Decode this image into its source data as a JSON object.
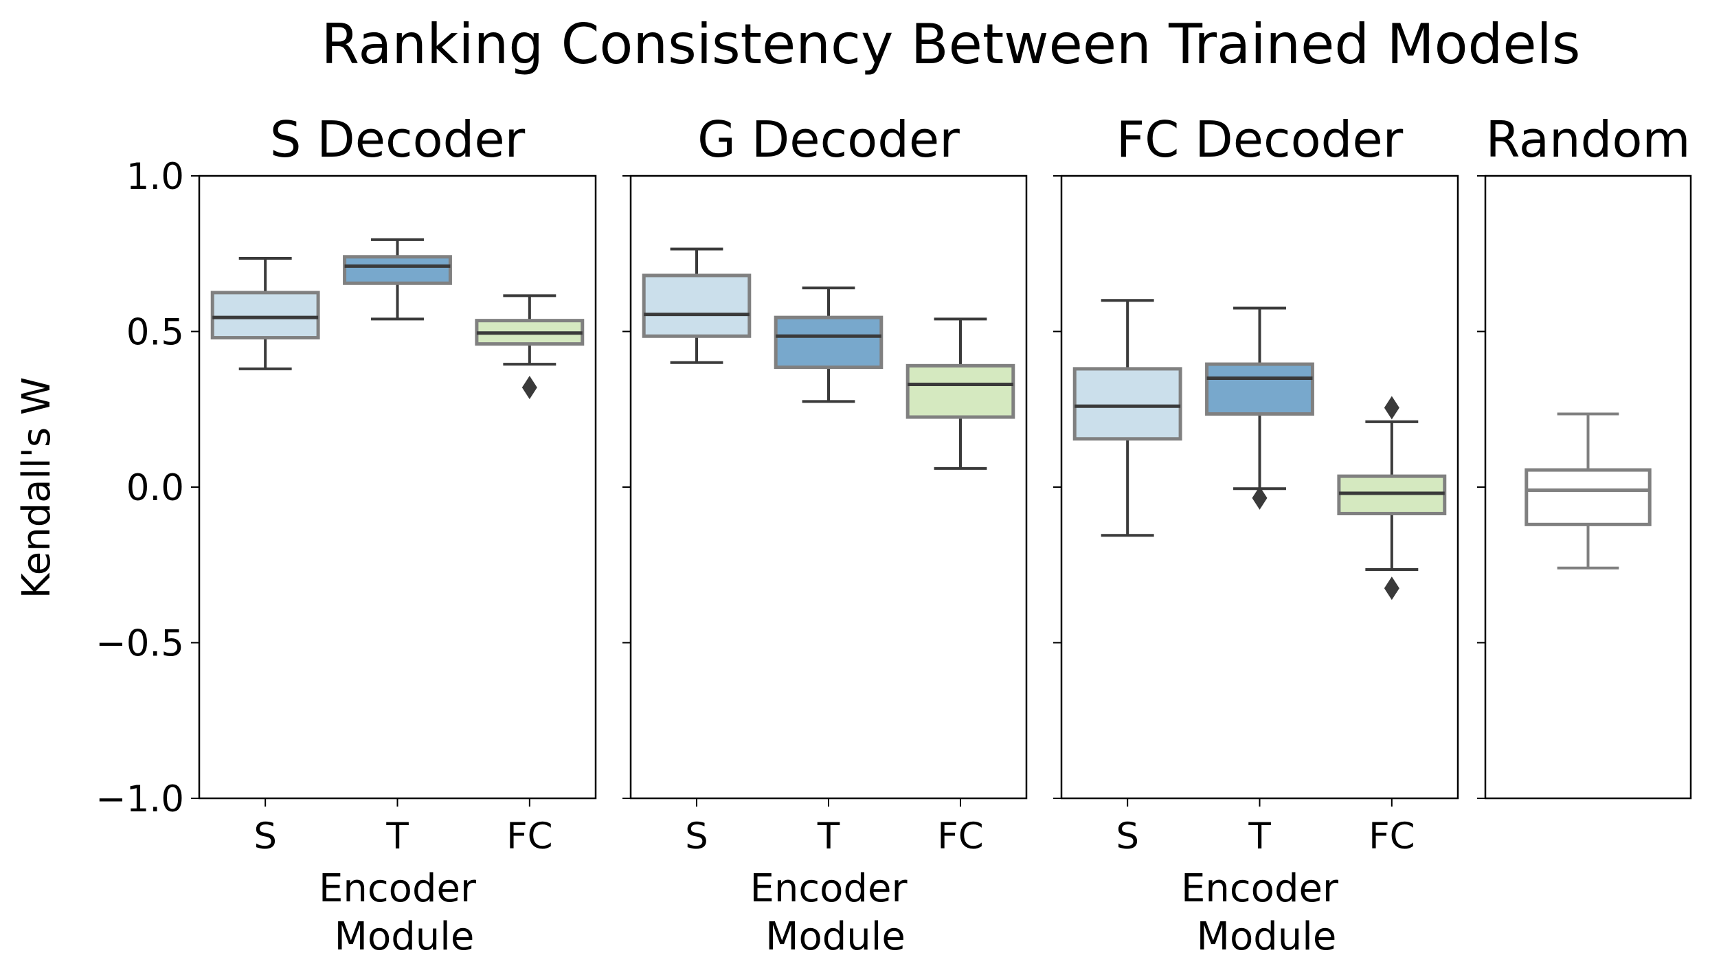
{
  "chart_data": {
    "type": "box",
    "title": "Ranking Consistency Between Trained Models",
    "ylabel": "Kendall's W",
    "ylim": [
      -1.0,
      1.0
    ],
    "yticks": [
      1.0,
      0.5,
      0.0,
      -0.5,
      -1.0
    ],
    "ytick_labels": [
      "1.0",
      "0.5",
      "0.0",
      "−0.5",
      "−1.0"
    ],
    "colors": {
      "S": "#cbdfeb",
      "T": "#78a8cc",
      "FC": "#d5e9c0",
      "Random": "#ffffff",
      "box_edge": "#808080",
      "median": "#3a3a3a",
      "outlier": "#3a3a3a"
    },
    "panels": [
      {
        "title": "S Decoder",
        "xlabel_line1": "Encoder",
        "xlabel_line2": "Module",
        "categories": [
          "S",
          "T",
          "FC"
        ],
        "boxes": [
          {
            "category": "S",
            "whislo": 0.38,
            "q1": 0.48,
            "med": 0.545,
            "q3": 0.625,
            "whishi": 0.735,
            "fliers": []
          },
          {
            "category": "T",
            "whislo": 0.54,
            "q1": 0.655,
            "med": 0.71,
            "q3": 0.74,
            "whishi": 0.795,
            "fliers": []
          },
          {
            "category": "FC",
            "whislo": 0.395,
            "q1": 0.46,
            "med": 0.495,
            "q3": 0.535,
            "whishi": 0.615,
            "fliers": [
              0.32
            ]
          }
        ]
      },
      {
        "title": "G Decoder",
        "xlabel_line1": "Encoder",
        "xlabel_line2": "Module",
        "categories": [
          "S",
          "T",
          "FC"
        ],
        "boxes": [
          {
            "category": "S",
            "whislo": 0.4,
            "q1": 0.485,
            "med": 0.555,
            "q3": 0.68,
            "whishi": 0.765,
            "fliers": []
          },
          {
            "category": "T",
            "whislo": 0.275,
            "q1": 0.385,
            "med": 0.485,
            "q3": 0.545,
            "whishi": 0.64,
            "fliers": []
          },
          {
            "category": "FC",
            "whislo": 0.06,
            "q1": 0.225,
            "med": 0.33,
            "q3": 0.39,
            "whishi": 0.54,
            "fliers": []
          }
        ]
      },
      {
        "title": "FC Decoder",
        "xlabel_line1": "Encoder",
        "xlabel_line2": "Module",
        "categories": [
          "S",
          "T",
          "FC"
        ],
        "boxes": [
          {
            "category": "S",
            "whislo": -0.155,
            "q1": 0.155,
            "med": 0.26,
            "q3": 0.38,
            "whishi": 0.6,
            "fliers": []
          },
          {
            "category": "T",
            "whislo": -0.005,
            "q1": 0.235,
            "med": 0.35,
            "q3": 0.395,
            "whishi": 0.575,
            "fliers": [
              -0.035
            ]
          },
          {
            "category": "FC",
            "whislo": -0.265,
            "q1": -0.085,
            "med": -0.02,
            "q3": 0.035,
            "whishi": 0.21,
            "fliers": [
              0.255,
              -0.325
            ]
          }
        ]
      },
      {
        "title": "Random",
        "xlabel_line1": "",
        "xlabel_line2": "",
        "categories": [
          ""
        ],
        "boxes": [
          {
            "category": "Random",
            "whislo": -0.26,
            "q1": -0.12,
            "med": -0.01,
            "q3": 0.055,
            "whishi": 0.235,
            "fliers": []
          }
        ]
      }
    ]
  }
}
